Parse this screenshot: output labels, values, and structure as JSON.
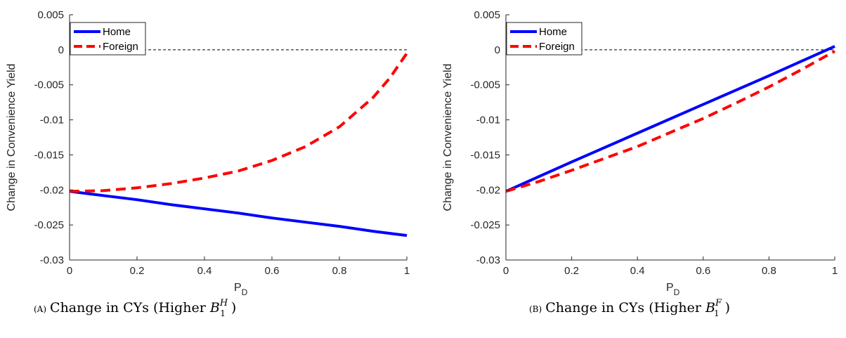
{
  "chart_data": [
    {
      "type": "line",
      "caption_prefix": "(A)",
      "caption_text": "Change in CYs (Higher ",
      "caption_symbol": "B",
      "caption_subscript": "1",
      "caption_superscript": "H",
      "caption_close": ")",
      "xlabel": "P",
      "xlabel_subscript": "D",
      "ylabel": "Change in Convenience Yield",
      "xlim": [
        0,
        1
      ],
      "ylim": [
        -0.03,
        0.005
      ],
      "xticks": [
        "0",
        "0.2",
        "0.4",
        "0.6",
        "0.8",
        "1"
      ],
      "yticks": [
        "-0.03",
        "-0.025",
        "-0.02",
        "-0.015",
        "-0.01",
        "-0.005",
        "0",
        "0.005"
      ],
      "reference_line": {
        "y": 0,
        "style": "dashed",
        "color": "#000000"
      },
      "legend_position": "top-left",
      "series": [
        {
          "name": "Home",
          "color": "#0000ff",
          "dash": "solid",
          "x": [
            0,
            0.1,
            0.2,
            0.3,
            0.4,
            0.5,
            0.6,
            0.7,
            0.8,
            0.9,
            1.0
          ],
          "y": [
            -0.0202,
            -0.0208,
            -0.0214,
            -0.0221,
            -0.0227,
            -0.0233,
            -0.024,
            -0.0246,
            -0.0252,
            -0.0259,
            -0.0265
          ]
        },
        {
          "name": "Foreign",
          "color": "#ff0000",
          "dash": "dashed",
          "x": [
            0,
            0.1,
            0.2,
            0.3,
            0.4,
            0.5,
            0.6,
            0.7,
            0.8,
            0.9,
            0.95,
            1.0
          ],
          "y": [
            -0.0202,
            -0.0201,
            -0.0197,
            -0.0191,
            -0.0183,
            -0.0173,
            -0.0158,
            -0.0138,
            -0.011,
            -0.0068,
            -0.004,
            -0.0005
          ]
        }
      ]
    },
    {
      "type": "line",
      "caption_prefix": "(B)",
      "caption_text": "Change in CYs (Higher ",
      "caption_symbol": "B",
      "caption_subscript": "1",
      "caption_superscript": "F",
      "caption_close": ")",
      "xlabel": "P",
      "xlabel_subscript": "D",
      "ylabel": "Change in Convenience Yield",
      "xlim": [
        0,
        1
      ],
      "ylim": [
        -0.03,
        0.005
      ],
      "xticks": [
        "0",
        "0.2",
        "0.4",
        "0.6",
        "0.8",
        "1"
      ],
      "yticks": [
        "-0.03",
        "-0.025",
        "-0.02",
        "-0.015",
        "-0.01",
        "-0.005",
        "0",
        "0.005"
      ],
      "reference_line": {
        "y": 0,
        "style": "dashed",
        "color": "#000000"
      },
      "legend_position": "top-left",
      "series": [
        {
          "name": "Home",
          "color": "#0000ff",
          "dash": "solid",
          "x": [
            0,
            0.2,
            0.4,
            0.6,
            0.8,
            1.0
          ],
          "y": [
            -0.0202,
            -0.016,
            -0.0119,
            -0.0078,
            -0.0037,
            0.0005
          ]
        },
        {
          "name": "Foreign",
          "color": "#ff0000",
          "dash": "dashed",
          "x": [
            0,
            0.1,
            0.2,
            0.3,
            0.4,
            0.5,
            0.6,
            0.7,
            0.8,
            0.9,
            1.0
          ],
          "y": [
            -0.0202,
            -0.0188,
            -0.0172,
            -0.0155,
            -0.0138,
            -0.0118,
            -0.0098,
            -0.0076,
            -0.0053,
            -0.0028,
            -0.0002
          ]
        }
      ]
    }
  ]
}
